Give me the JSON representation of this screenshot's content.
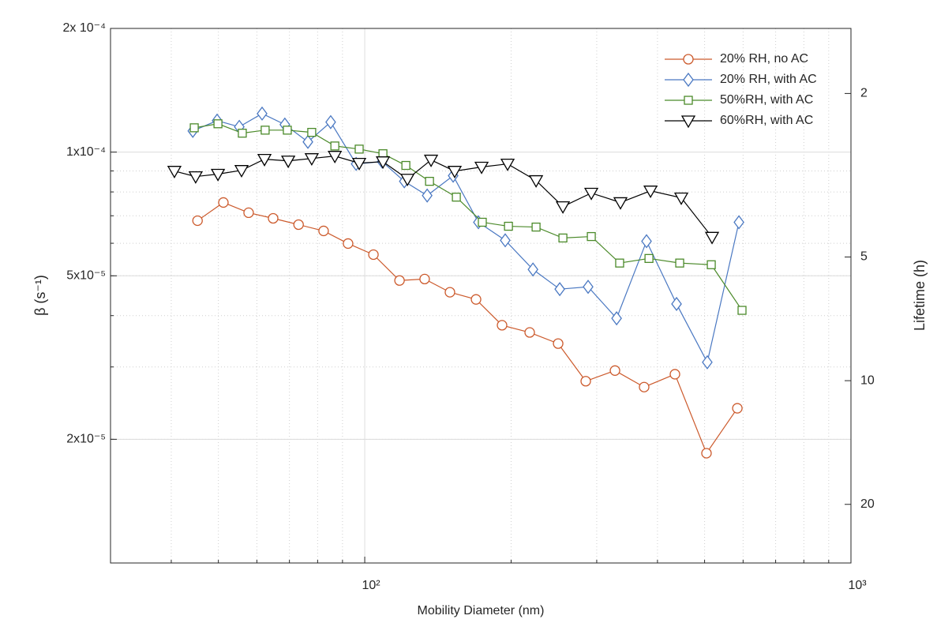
{
  "chart_data": {
    "type": "line",
    "x_label": "Mobility Diameter (nm)",
    "y_label": "β (s⁻¹)",
    "y2_label": "Lifetime (h)",
    "xscale": "log",
    "yscale": "log",
    "y2scale": "log",
    "xlim": [
      30,
      1000
    ],
    "ylim": [
      1e-05,
      0.0002
    ],
    "y2lim": [
      1.389,
      27.78
    ],
    "xticks": [
      {
        "value": 100,
        "label": "10²"
      },
      {
        "value": 1000,
        "label": "10³"
      }
    ],
    "yticks": [
      {
        "value": 0.0002,
        "label": "2x 10⁻⁴"
      },
      {
        "value": 0.0001,
        "label": "1x10⁻⁴"
      },
      {
        "value": 5e-05,
        "label": "5x10⁻⁵"
      },
      {
        "value": 2e-05,
        "label": "2x10⁻⁵"
      }
    ],
    "y2ticks": [
      2,
      5,
      10,
      20
    ],
    "grid": true,
    "minor_grid": true,
    "legend": "upper right",
    "series": [
      {
        "name": "20% RH, no AC",
        "color": "#cc5a2c",
        "marker": "circle",
        "x": [
          45.3,
          51.2,
          57.7,
          64.8,
          73.1,
          82.3,
          92.4,
          104.2,
          117.9,
          132.8,
          149.7,
          169.4,
          191.6,
          218.4,
          249.9,
          284.8,
          327.1,
          375.5,
          434.5,
          504.5,
          583.9
        ],
        "values": [
          6.81e-05,
          7.54e-05,
          7.12e-05,
          6.9e-05,
          6.66e-05,
          6.43e-05,
          5.99e-05,
          5.63e-05,
          4.87e-05,
          4.91e-05,
          4.56e-05,
          4.38e-05,
          3.79e-05,
          3.64e-05,
          3.42e-05,
          2.77e-05,
          2.94e-05,
          2.68e-05,
          2.88e-05,
          1.85e-05,
          2.38e-05
        ]
      },
      {
        "name": "20% RH, with AC",
        "color": "#4a78c2",
        "marker": "diamond",
        "x": [
          44.3,
          49.7,
          55.2,
          61.5,
          68.5,
          76.4,
          85.1,
          96.0,
          108.6,
          120.6,
          134.4,
          152.0,
          171.3,
          194.5,
          221.8,
          251.8,
          288.0,
          329.6,
          379.8,
          437.8,
          506.4,
          588.3
        ],
        "values": [
          0.0001126,
          0.0001193,
          0.0001152,
          0.0001241,
          0.0001167,
          0.0001059,
          0.0001183,
          9.36e-05,
          9.48e-05,
          8.49e-05,
          7.84e-05,
          8.76e-05,
          6.75e-05,
          6.1e-05,
          5.18e-05,
          4.64e-05,
          4.7e-05,
          3.94e-05,
          6.07e-05,
          4.27e-05,
          3.08e-05,
          6.75e-05
        ]
      },
      {
        "name": "50%RH, with AC",
        "color": "#4b8a2a",
        "marker": "square",
        "x": [
          44.6,
          49.9,
          56.0,
          62.4,
          69.3,
          77.8,
          86.8,
          97.4,
          109.0,
          121.5,
          135.9,
          154.3,
          174.5,
          197.5,
          225.1,
          255.6,
          292.4,
          334.4,
          384.2,
          444.4,
          516.1,
          597.0
        ],
        "values": [
          0.0001146,
          0.0001172,
          0.0001112,
          0.0001131,
          0.0001131,
          0.0001117,
          0.0001035,
          0.0001017,
          9.91e-05,
          9.28e-05,
          8.49e-05,
          7.77e-05,
          6.75e-05,
          6.6e-05,
          6.57e-05,
          6.18e-05,
          6.23e-05,
          5.37e-05,
          5.51e-05,
          5.37e-05,
          5.32e-05,
          4.12e-05
        ]
      },
      {
        "name": "60%RH, with AC",
        "color": "#000000",
        "marker": "triangle-down",
        "x": [
          40.6,
          44.9,
          49.9,
          55.8,
          62.2,
          69.6,
          77.8,
          86.8,
          97.4,
          109.0,
          122.4,
          136.9,
          153.1,
          173.9,
          196.7,
          225.1,
          255.6,
          292.4,
          335.7,
          387.1,
          447.7,
          518.0
        ],
        "values": [
          8.99e-05,
          8.72e-05,
          8.84e-05,
          9.03e-05,
          9.61e-05,
          9.52e-05,
          9.65e-05,
          9.78e-05,
          9.4e-05,
          9.48e-05,
          8.6e-05,
          9.57e-05,
          8.99e-05,
          9.2e-05,
          9.36e-05,
          8.53e-05,
          7.37e-05,
          7.95e-05,
          7.54e-05,
          8.05e-05,
          7.74e-05,
          6.21e-05
        ]
      }
    ]
  }
}
